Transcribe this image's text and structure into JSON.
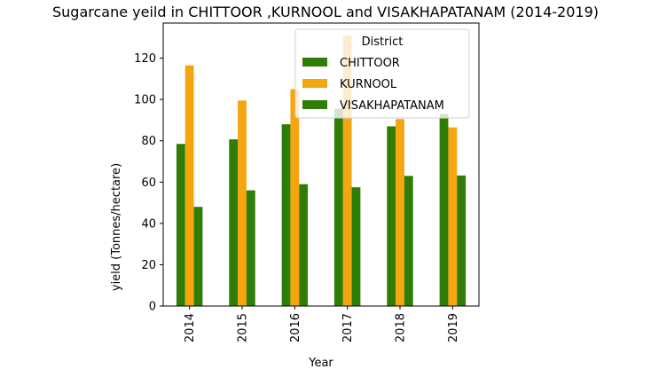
{
  "chart_data": {
    "type": "bar",
    "title": "Sugarcane yeild in CHITTOOR ,KURNOOL and VISAKHAPATANAM (2014-2019)",
    "xlabel": "Year",
    "ylabel": "yield (Tonnes/hectare)",
    "categories": [
      "2014",
      "2015",
      "2016",
      "2017",
      "2018",
      "2019"
    ],
    "yticks": [
      0,
      20,
      40,
      60,
      80,
      100,
      120
    ],
    "ylim": [
      0,
      137
    ],
    "grid": false,
    "legend": {
      "title": "District",
      "position": "top-right"
    },
    "series": [
      {
        "name": "CHITTOOR",
        "color": "#2e7d07",
        "values": [
          78.5,
          80.7,
          88,
          95.5,
          87,
          93
        ]
      },
      {
        "name": "KURNOOL",
        "color": "#f5a50f",
        "values": [
          116.5,
          99.5,
          105,
          131,
          90.5,
          86.5
        ]
      },
      {
        "name": "VISAKHAPATANAM",
        "color": "#2e7d07",
        "values": [
          48,
          56,
          59,
          57.5,
          63,
          63.2
        ]
      }
    ]
  }
}
